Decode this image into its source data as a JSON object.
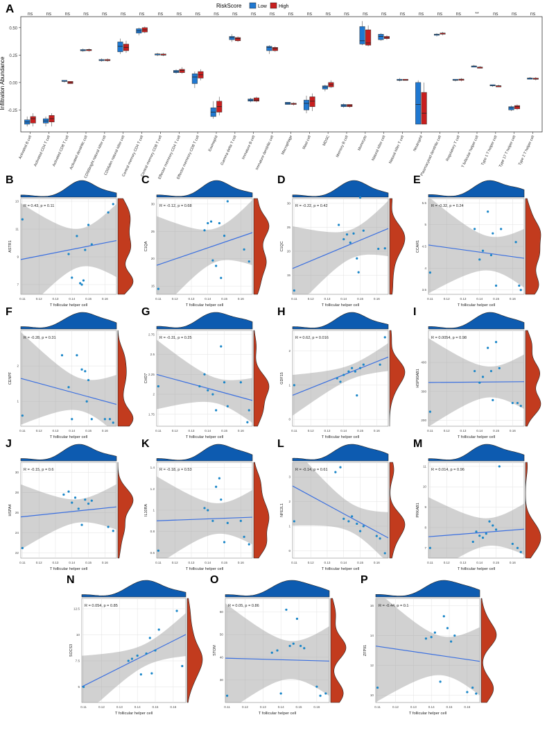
{
  "figure": {
    "panel_a": {
      "label": "A",
      "legend_title": "RiskScore",
      "legend": [
        {
          "name": "Low",
          "color": "#1f78d1"
        },
        {
          "name": "High",
          "color": "#c81e1e"
        }
      ],
      "ylabel": "Infiltration Abundance",
      "yticks": [
        "0.50",
        "0.25",
        "0.00",
        "-0.25"
      ]
    },
    "scatter_xlabel": "T follicular helper cell",
    "scatter_xticks": [
      "0.11",
      "0.12",
      "0.13",
      "0.14",
      "0.15",
      "0.16"
    ]
  },
  "chart_data": [
    {
      "type": "box",
      "title": "",
      "xlabel": "",
      "ylabel": "Infiltration Abundance",
      "ylim": [
        -0.45,
        0.6
      ],
      "categories": [
        "Activated B cell",
        "Activated CD4 T cell",
        "Activated CD8 T cell",
        "Activated dendritic cell",
        "CD56bright natural killer cell",
        "CD56dim natural killer cell",
        "Central memory CD4 T cell",
        "Central memory CD8 T cell",
        "Effector memeory CD4 T cell",
        "Effector memeory CD8 T cell",
        "Eosinophil",
        "Gamma delta T cell",
        "Immature B cell",
        "Immature dendritic cell",
        "Macrophage",
        "Mast cell",
        "MDSC",
        "Memory B cell",
        "Monocyte",
        "Natural killer cell",
        "Natural killer T cell",
        "Neutrophil",
        "Plasmacytoid dendritic cell",
        "Regulatory T cell",
        "T follicular helper cell",
        "Type 1 T helper cell",
        "Type 17 T helper cell",
        "Type 2 T helper cell"
      ],
      "significance": [
        "ns",
        "ns",
        "ns",
        "ns",
        "ns",
        "ns",
        "ns",
        "ns",
        "ns",
        "ns",
        "ns",
        "ns",
        "ns",
        "ns",
        "ns",
        "ns",
        "ns",
        "ns",
        "ns",
        "ns",
        "ns",
        "ns",
        "ns",
        "ns",
        "**",
        "ns",
        "ns",
        "ns"
      ],
      "series": [
        {
          "name": "Low",
          "color": "#1f78d1",
          "boxes": [
            [
              -0.4,
              -0.38,
              -0.36,
              -0.34,
              -0.31
            ],
            [
              -0.4,
              -0.37,
              -0.35,
              -0.33,
              -0.31
            ],
            [
              0.0,
              0.01,
              0.01,
              0.02,
              0.02
            ],
            [
              0.28,
              0.29,
              0.29,
              0.3,
              0.31
            ],
            [
              0.19,
              0.2,
              0.2,
              0.21,
              0.22
            ],
            [
              0.26,
              0.28,
              0.33,
              0.37,
              0.4
            ],
            [
              0.43,
              0.45,
              0.47,
              0.49,
              0.5
            ],
            [
              0.24,
              0.25,
              0.26,
              0.26,
              0.27
            ],
            [
              0.08,
              0.09,
              0.1,
              0.11,
              0.12
            ],
            [
              -0.05,
              -0.01,
              0.05,
              0.08,
              0.1
            ],
            [
              -0.33,
              -0.31,
              -0.27,
              -0.23,
              -0.17
            ],
            [
              0.37,
              0.39,
              0.41,
              0.42,
              0.44
            ],
            [
              -0.18,
              -0.17,
              -0.16,
              -0.15,
              -0.14
            ],
            [
              0.26,
              0.29,
              0.32,
              0.33,
              0.34
            ],
            [
              -0.2,
              -0.2,
              -0.19,
              -0.18,
              -0.18
            ],
            [
              -0.28,
              -0.25,
              -0.19,
              -0.16,
              -0.12
            ],
            [
              -0.08,
              -0.06,
              -0.04,
              -0.03,
              -0.02
            ],
            [
              -0.23,
              -0.22,
              -0.21,
              -0.2,
              -0.19
            ],
            [
              0.34,
              0.35,
              0.38,
              0.51,
              0.56
            ],
            [
              0.38,
              0.39,
              0.42,
              0.44,
              0.45
            ],
            [
              0.01,
              0.02,
              0.02,
              0.03,
              0.04
            ],
            [
              -0.38,
              -0.38,
              -0.2,
              0.0,
              0.02
            ],
            [
              0.42,
              0.43,
              0.44,
              0.44,
              0.45
            ],
            [
              0.01,
              0.02,
              0.02,
              0.03,
              0.03
            ],
            [
              0.14,
              0.14,
              0.15,
              0.15,
              0.16
            ],
            [
              -0.04,
              -0.03,
              -0.03,
              -0.02,
              -0.02
            ],
            [
              -0.26,
              -0.25,
              -0.23,
              -0.22,
              -0.21
            ],
            [
              0.03,
              0.03,
              0.04,
              0.04,
              0.05
            ]
          ]
        },
        {
          "name": "High",
          "color": "#c81e1e",
          "boxes": [
            [
              -0.4,
              -0.37,
              -0.33,
              -0.31,
              -0.28
            ],
            [
              -0.4,
              -0.36,
              -0.33,
              -0.3,
              -0.28
            ],
            [
              -0.01,
              -0.01,
              0.0,
              0.01,
              0.01
            ],
            [
              0.28,
              0.29,
              0.3,
              0.3,
              0.31
            ],
            [
              0.19,
              0.2,
              0.2,
              0.21,
              0.22
            ],
            [
              0.27,
              0.29,
              0.32,
              0.35,
              0.38
            ],
            [
              0.45,
              0.46,
              0.48,
              0.5,
              0.51
            ],
            [
              0.24,
              0.25,
              0.25,
              0.26,
              0.27
            ],
            [
              0.08,
              0.09,
              0.11,
              0.12,
              0.14
            ],
            [
              0.02,
              0.04,
              0.07,
              0.1,
              0.12
            ],
            [
              -0.3,
              -0.27,
              -0.22,
              -0.17,
              -0.13
            ],
            [
              0.37,
              0.38,
              0.4,
              0.41,
              0.42
            ],
            [
              -0.18,
              -0.17,
              -0.16,
              -0.14,
              -0.13
            ],
            [
              0.28,
              0.29,
              0.31,
              0.32,
              0.33
            ],
            [
              -0.21,
              -0.2,
              -0.19,
              -0.19,
              -0.18
            ],
            [
              -0.26,
              -0.22,
              -0.17,
              -0.13,
              -0.1
            ],
            [
              -0.05,
              -0.04,
              -0.02,
              0.0,
              0.02
            ],
            [
              -0.23,
              -0.22,
              -0.21,
              -0.2,
              -0.2
            ],
            [
              0.33,
              0.34,
              0.36,
              0.48,
              0.52
            ],
            [
              0.39,
              0.4,
              0.41,
              0.42,
              0.43
            ],
            [
              0.02,
              0.02,
              0.02,
              0.03,
              0.03
            ],
            [
              -0.38,
              -0.38,
              -0.28,
              -0.09,
              0.0
            ],
            [
              0.43,
              0.44,
              0.45,
              0.45,
              0.46
            ],
            [
              0.01,
              0.02,
              0.03,
              0.03,
              0.04
            ],
            [
              0.13,
              0.13,
              0.14,
              0.14,
              0.15
            ],
            [
              -0.04,
              -0.04,
              -0.03,
              -0.03,
              -0.02
            ],
            [
              -0.25,
              -0.24,
              -0.22,
              -0.21,
              -0.2
            ],
            [
              0.02,
              0.03,
              0.03,
              0.04,
              0.05
            ]
          ]
        }
      ]
    },
    {
      "type": "scatter",
      "label": "B",
      "ylabel": "ASTR1",
      "stat": "R = 0.43, p = 0.11",
      "xlim": [
        0.109,
        0.167
      ],
      "ylim": [
        6.3,
        13.2
      ],
      "yticks": [
        7,
        9,
        11,
        13
      ],
      "x": [
        0.11,
        0.138,
        0.14,
        0.143,
        0.145,
        0.146,
        0.147,
        0.148,
        0.15,
        0.152,
        0.162,
        0.165
      ],
      "y": [
        11.7,
        9.2,
        7.5,
        10.5,
        7.1,
        7.0,
        7.3,
        9.5,
        11.3,
        9.9,
        12.2,
        12.8
      ]
    },
    {
      "type": "scatter",
      "label": "C",
      "ylabel": "C1QA",
      "stat": "R = -0.12, p = 0.68",
      "xlim": [
        0.109,
        0.167
      ],
      "ylim": [
        13.5,
        31
      ],
      "yticks": [
        15,
        20,
        25,
        30
      ],
      "x": [
        0.11,
        0.138,
        0.14,
        0.142,
        0.143,
        0.145,
        0.147,
        0.148,
        0.15,
        0.152,
        0.162,
        0.165
      ],
      "y": [
        14.5,
        25.2,
        26.5,
        26.8,
        19.7,
        18.7,
        26.5,
        16.5,
        24.2,
        30.5,
        21.7,
        19.5
      ]
    },
    {
      "type": "scatter",
      "label": "D",
      "ylabel": "C1QC",
      "stat": "R = -0.22, p = 0.42",
      "xlim": [
        0.109,
        0.167
      ],
      "ylim": [
        11,
        31
      ],
      "yticks": [
        15,
        20,
        25,
        30
      ],
      "x": [
        0.11,
        0.137,
        0.14,
        0.142,
        0.144,
        0.146,
        0.148,
        0.149,
        0.15,
        0.152,
        0.161,
        0.165
      ],
      "y": [
        11.8,
        25.5,
        22.5,
        23.5,
        21.8,
        23.7,
        18.5,
        15.6,
        31.2,
        24.3,
        20.5,
        20.6
      ]
    },
    {
      "type": "scatter",
      "label": "E",
      "ylabel": "CCAR1",
      "stat": "R = -0.32, p = 0.24",
      "xlim": [
        0.109,
        0.167
      ],
      "ylim": [
        3.4,
        5.6
      ],
      "yticks": [
        3.5,
        4.0,
        4.5,
        5.0,
        5.5
      ],
      "x": [
        0.11,
        0.137,
        0.14,
        0.142,
        0.145,
        0.147,
        0.148,
        0.15,
        0.153,
        0.162,
        0.164,
        0.165
      ],
      "y": [
        3.9,
        4.9,
        4.2,
        4.4,
        5.3,
        4.3,
        4.8,
        3.6,
        4.9,
        4.6,
        3.6,
        3.5
      ]
    },
    {
      "type": "scatter",
      "label": "F",
      "ylabel": "CENPF",
      "stat": "R = -0.28, p = 0.31",
      "xlim": [
        0.109,
        0.167
      ],
      "ylim": [
        0.3,
        3.0
      ],
      "yticks": [
        1,
        2
      ],
      "x": [
        0.11,
        0.134,
        0.138,
        0.14,
        0.143,
        0.146,
        0.148,
        0.149,
        0.15,
        0.152,
        0.16,
        0.163,
        0.165
      ],
      "y": [
        0.6,
        2.3,
        1.4,
        0.5,
        2.3,
        1.9,
        1.85,
        1.0,
        1.6,
        0.5,
        0.5,
        0.5,
        0.4
      ],
      "note": "approx."
    },
    {
      "type": "scatter",
      "label": "G",
      "ylabel": "CHD7",
      "stat": "R = -0.31, p = 0.25",
      "xlim": [
        0.109,
        0.167
      ],
      "ylim": [
        1.6,
        2.8
      ],
      "yticks": [
        1.75,
        2.0,
        2.25,
        2.5,
        2.75
      ],
      "x": [
        0.11,
        0.135,
        0.138,
        0.14,
        0.143,
        0.145,
        0.148,
        0.15,
        0.152,
        0.16,
        0.164,
        0.165
      ],
      "y": [
        2.1,
        2.1,
        2.25,
        2.05,
        2.0,
        1.8,
        2.6,
        2.15,
        1.85,
        2.15,
        1.65,
        1.8
      ]
    },
    {
      "type": "scatter",
      "label": "H",
      "ylabel": "GDF15",
      "stat": "R = 0.62, p = 0.016",
      "xlim": [
        0.109,
        0.167
      ],
      "ylim": [
        -0.2,
        2.6
      ],
      "yticks": [
        0,
        1,
        2
      ],
      "x": [
        0.11,
        0.136,
        0.138,
        0.14,
        0.143,
        0.145,
        0.147,
        0.148,
        0.15,
        0.152,
        0.162,
        0.165
      ],
      "y": [
        1.0,
        1.2,
        1.1,
        1.3,
        1.4,
        1.5,
        1.4,
        0.7,
        1.5,
        1.6,
        1.6,
        2.4
      ]
    },
    {
      "type": "scatter",
      "label": "I",
      "ylabel": "HSP90AB1",
      "stat": "R = 0.0054, p = 0.98",
      "xlim": [
        0.109,
        0.167
      ],
      "ylim": [
        180,
        510
      ],
      "yticks": [
        200,
        300,
        400
      ],
      "x": [
        0.11,
        0.137,
        0.14,
        0.142,
        0.145,
        0.147,
        0.148,
        0.15,
        0.152,
        0.16,
        0.163,
        0.165
      ],
      "y": [
        230,
        370,
        330,
        350,
        450,
        370,
        270,
        470,
        380,
        260,
        260,
        250
      ]
    },
    {
      "type": "scatter",
      "label": "J",
      "ylabel": "HSPA4",
      "stat": "R = -0.15, p = 0.6",
      "xlim": [
        0.109,
        0.167
      ],
      "ylim": [
        21.5,
        31
      ],
      "yticks": [
        22,
        24,
        26,
        28,
        30
      ],
      "x": [
        0.11,
        0.135,
        0.138,
        0.14,
        0.142,
        0.144,
        0.146,
        0.148,
        0.15,
        0.152,
        0.162,
        0.165
      ],
      "y": [
        22.5,
        27.8,
        28.1,
        27.0,
        27.5,
        26.4,
        24.8,
        27.3,
        26.9,
        27.2,
        24.6,
        24.2
      ]
    },
    {
      "type": "scatter",
      "label": "K",
      "ylabel": "IL10RA",
      "stat": "R = -0.18, p = 0.53",
      "xlim": [
        0.109,
        0.167
      ],
      "ylim": [
        0.55,
        1.45
      ],
      "yticks": [
        0.6,
        0.8,
        1.0,
        1.2,
        1.4
      ],
      "x": [
        0.11,
        0.138,
        0.14,
        0.143,
        0.145,
        0.147,
        0.148,
        0.15,
        0.152,
        0.16,
        0.162,
        0.165
      ],
      "y": [
        0.62,
        1.02,
        1.0,
        0.9,
        1.22,
        1.3,
        1.1,
        0.7,
        0.88,
        0.9,
        0.75,
        0.68
      ]
    },
    {
      "type": "scatter",
      "label": "L",
      "ylabel": "NFE2L1",
      "stat": "R = -0.14, p = 0.61",
      "xlim": [
        0.109,
        0.167
      ],
      "ylim": [
        -0.3,
        3.6
      ],
      "yticks": [
        0,
        1,
        2,
        3
      ],
      "x": [
        0.11,
        0.135,
        0.138,
        0.14,
        0.143,
        0.145,
        0.148,
        0.15,
        0.152,
        0.16,
        0.162,
        0.165
      ],
      "y": [
        1.2,
        3.2,
        3.4,
        1.3,
        1.2,
        1.4,
        1.1,
        0.8,
        1.0,
        0.6,
        0.5,
        -0.1
      ]
    },
    {
      "type": "scatter",
      "label": "M",
      "ylabel": "PRKAB1",
      "stat": "R = 0.014, p = 0.96",
      "xlim": [
        0.109,
        0.167
      ],
      "ylim": [
        6.5,
        11.2
      ],
      "yticks": [
        7,
        8,
        9,
        10,
        11
      ],
      "x": [
        0.11,
        0.136,
        0.138,
        0.14,
        0.142,
        0.144,
        0.146,
        0.148,
        0.15,
        0.152,
        0.16,
        0.163,
        0.165
      ],
      "y": [
        7.0,
        7.3,
        7.8,
        7.6,
        7.5,
        7.7,
        8.3,
        8.1,
        7.9,
        11.0,
        7.2,
        7.0,
        6.8
      ]
    },
    {
      "type": "scatter",
      "label": "N",
      "ylabel": "SOCS3",
      "stat": "R = 0.054, p = 0.85",
      "xlim": [
        0.109,
        0.167
      ],
      "ylim": [
        3.5,
        13.5
      ],
      "yticks": [
        5.0,
        7.5,
        10.0,
        12.5
      ],
      "x": [
        0.11,
        0.135,
        0.137,
        0.14,
        0.142,
        0.145,
        0.147,
        0.148,
        0.15,
        0.152,
        0.162,
        0.165
      ],
      "y": [
        5.0,
        7.5,
        7.7,
        8.0,
        6.2,
        8.2,
        9.7,
        6.3,
        8.5,
        10.5,
        12.3,
        7.0
      ]
    },
    {
      "type": "scatter",
      "label": "O",
      "ylabel": "STOM",
      "stat": "R = 0.05, p = 0.86",
      "xlim": [
        0.109,
        0.167
      ],
      "ylim": [
        20,
        66
      ],
      "yticks": [
        30,
        40,
        50,
        60
      ],
      "x": [
        0.11,
        0.135,
        0.138,
        0.14,
        0.143,
        0.145,
        0.147,
        0.149,
        0.151,
        0.153,
        0.16,
        0.162,
        0.165
      ],
      "y": [
        23,
        42,
        43,
        24,
        61,
        45,
        46,
        57,
        45,
        44,
        27,
        23,
        24
      ]
    },
    {
      "type": "scatter",
      "label": "P",
      "ylabel": "ZFP91",
      "stat": "R = -0.44, p = 0.1",
      "xlim": [
        0.109,
        0.167
      ],
      "ylim": [
        9.5,
        16.5
      ],
      "yticks": [
        10,
        12,
        14,
        16
      ],
      "x": [
        0.11,
        0.137,
        0.14,
        0.142,
        0.145,
        0.147,
        0.149,
        0.151,
        0.153,
        0.16,
        0.163,
        0.165
      ],
      "y": [
        10.5,
        13.8,
        13.9,
        14.2,
        10.9,
        15.3,
        14.5,
        13.6,
        14.0,
        10.2,
        10.5,
        10.1
      ]
    }
  ]
}
